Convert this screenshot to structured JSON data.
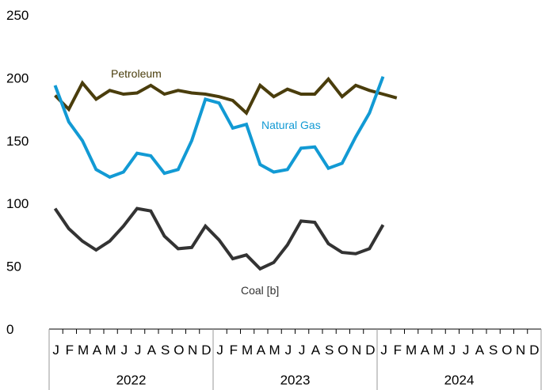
{
  "chart_data": {
    "type": "line",
    "title": "",
    "xlabel": "",
    "ylabel": "",
    "ylim": [
      0,
      250
    ],
    "yticks": [
      "0",
      "50",
      "100",
      "150",
      "200",
      "250"
    ],
    "years": [
      "2022",
      "2023",
      "2024"
    ],
    "months": [
      "J",
      "F",
      "M",
      "A",
      "M",
      "J",
      "J",
      "A",
      "S",
      "O",
      "N",
      "D"
    ],
    "grid": false,
    "series": [
      {
        "name": "Petroleum",
        "color": "#4a3d0c",
        "values": [
          186,
          175,
          196,
          183,
          190,
          187,
          188,
          194,
          187,
          190,
          188,
          187,
          185,
          182,
          172,
          194,
          185,
          191,
          187,
          187,
          199,
          185,
          194,
          190,
          187,
          184
        ]
      },
      {
        "name": "Natural Gas",
        "color": "#129ad4",
        "values": [
          194,
          165,
          150,
          127,
          121,
          125,
          140,
          138,
          124,
          127,
          150,
          183,
          180,
          160,
          163,
          131,
          125,
          127,
          144,
          145,
          128,
          132,
          153,
          172,
          201
        ]
      },
      {
        "name": "Coal [b]",
        "color": "#333333",
        "values": [
          96,
          80,
          70,
          63,
          70,
          82,
          96,
          94,
          74,
          64,
          65,
          82,
          71,
          56,
          59,
          48,
          53,
          67,
          86,
          85,
          68,
          61,
          60,
          64,
          83
        ]
      }
    ]
  }
}
